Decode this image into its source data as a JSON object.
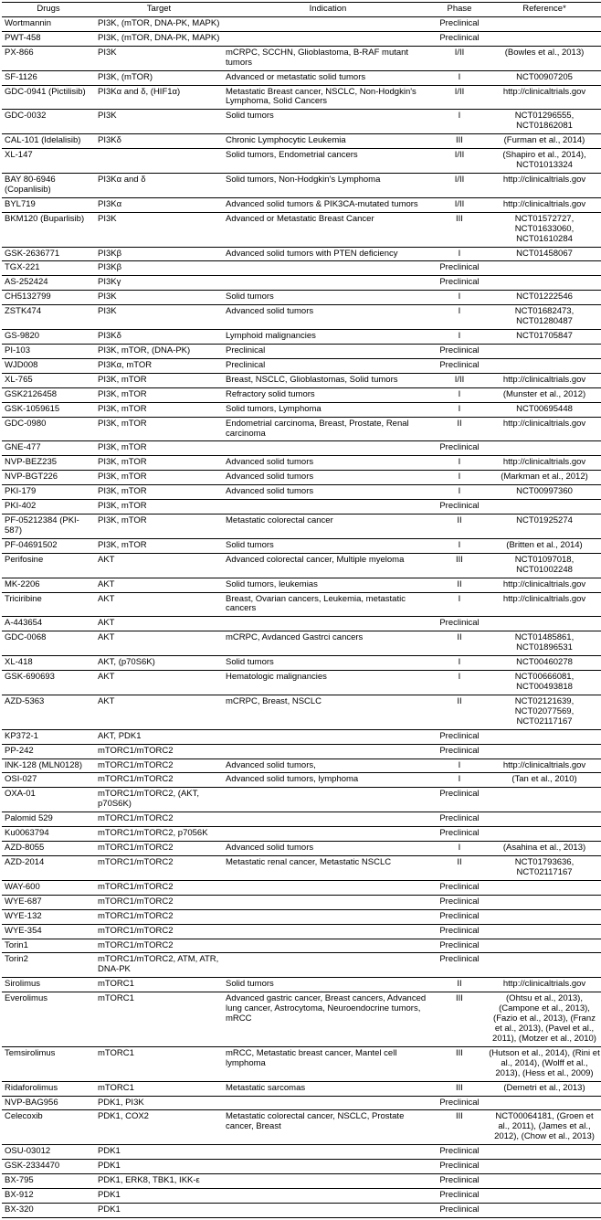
{
  "columns": [
    "Drugs",
    "Target",
    "Indication",
    "Phase",
    "Reference*"
  ],
  "rows": [
    {
      "drug": "Wortmannin",
      "target": "PI3K, (mTOR, DNA-PK, MAPK)",
      "indication": "",
      "phase": "Preclinical",
      "reference": ""
    },
    {
      "drug": "PWT-458",
      "target": "PI3K, (mTOR, DNA-PK, MAPK)",
      "indication": "",
      "phase": "Preclinical",
      "reference": ""
    },
    {
      "drug": "PX-866",
      "target": "PI3K",
      "indication": "mCRPC, SCCHN, Glioblastoma, B-RAF mutant tumors",
      "phase": "I/II",
      "reference": "(Bowles et al., 2013)"
    },
    {
      "drug": "SF-1126",
      "target": "PI3K, (mTOR)",
      "indication": "Advanced or metastatic solid tumors",
      "phase": "I",
      "reference": "NCT00907205"
    },
    {
      "drug": "GDC-0941 (Pictilisib)",
      "target": "PI3Kα and δ, (HIF1α)",
      "indication": "Metastatic Breast cancer, NSCLC, Non-Hodgkin's Lymphoma, Solid Cancers",
      "phase": "I/II",
      "reference": "http://clinicaltrials.gov"
    },
    {
      "drug": "GDC-0032",
      "target": "PI3K",
      "indication": "Solid tumors",
      "phase": "I",
      "reference": "NCT01296555, NCT01862081"
    },
    {
      "drug": "CAL-101 (Idelalisib)",
      "target": "PI3Kδ",
      "indication": "Chronic Lymphocytic Leukemia",
      "phase": "III",
      "reference": "(Furman et al., 2014)"
    },
    {
      "drug": "XL-147",
      "target": "",
      "indication": "Solid tumors, Endometrial cancers",
      "phase": "I/II",
      "reference": "(Shapiro et al., 2014), NCT01013324"
    },
    {
      "drug": "BAY 80-6946 (Copanlisib)",
      "target": "PI3Kα and δ",
      "indication": "Solid tumors, Non-Hodgkin's Lymphoma",
      "phase": "I/II",
      "reference": "http://clinicaltrials.gov"
    },
    {
      "drug": "BYL719",
      "target": "PI3Kα",
      "indication": "Advanced solid tumors & PIK3CA-mutated tumors",
      "phase": "I/II",
      "reference": "http://clinicaltrials.gov"
    },
    {
      "drug": "BKM120 (Buparlisib)",
      "target": "PI3K",
      "indication": "Advanced or Metastatic Breast Cancer",
      "phase": "III",
      "reference": "NCT01572727, NCT01633060, NCT01610284"
    },
    {
      "drug": "GSK-2636771",
      "target": "PI3Kβ",
      "indication": "Advanced solid tumors with PTEN deficiency",
      "phase": "I",
      "reference": "NCT01458067"
    },
    {
      "drug": "TGX-221",
      "target": "PI3Kβ",
      "indication": "",
      "phase": "Preclinical",
      "reference": ""
    },
    {
      "drug": "AS-252424",
      "target": "PI3Kγ",
      "indication": "",
      "phase": "Preclinical",
      "reference": ""
    },
    {
      "drug": "CH5132799",
      "target": "PI3K",
      "indication": "Solid tumors",
      "phase": "I",
      "reference": "NCT01222546"
    },
    {
      "drug": "ZSTK474",
      "target": "PI3K",
      "indication": "Advanced solid tumors",
      "phase": "I",
      "reference": "NCT01682473, NCT01280487"
    },
    {
      "drug": "GS-9820",
      "target": "PI3Kδ",
      "indication": "Lymphoid malignancies",
      "phase": "I",
      "reference": "NCT01705847"
    },
    {
      "drug": "PI-103",
      "target": "PI3K, mTOR, (DNA-PK)",
      "indication": "Preclinical",
      "phase": "Preclinical",
      "reference": ""
    },
    {
      "drug": "WJD008",
      "target": "PI3Kα, mTOR",
      "indication": "Preclinical",
      "phase": "Preclinical",
      "reference": ""
    },
    {
      "drug": "XL-765",
      "target": "PI3K, mTOR",
      "indication": "Breast, NSCLC, Glioblastomas, Solid tumors",
      "phase": "I/II",
      "reference": "http://clinicaltrials.gov"
    },
    {
      "drug": "GSK2126458",
      "target": "PI3K, mTOR",
      "indication": "Refractory solid tumors",
      "phase": "I",
      "reference": "(Munster et al., 2012)"
    },
    {
      "drug": "GSK-1059615",
      "target": "PI3K, mTOR",
      "indication": "Solid tumors, Lymphoma",
      "phase": "I",
      "reference": "NCT00695448"
    },
    {
      "drug": "GDC-0980",
      "target": "PI3K, mTOR",
      "indication": "Endometrial carcinoma, Breast, Prostate, Renal carcinoma",
      "phase": "II",
      "reference": "http://clinicaltrials.gov"
    },
    {
      "drug": "GNE-477",
      "target": "PI3K, mTOR",
      "indication": "",
      "phase": "Preclinical",
      "reference": ""
    },
    {
      "drug": "NVP-BEZ235",
      "target": "PI3K, mTOR",
      "indication": "Advanced solid tumors",
      "phase": "I",
      "reference": "http://clinicaltrials.gov"
    },
    {
      "drug": "NVP-BGT226",
      "target": "PI3K, mTOR",
      "indication": "Advanced solid tumors",
      "phase": "I",
      "reference": "(Markman et al., 2012)"
    },
    {
      "drug": "PKI-179",
      "target": "PI3K, mTOR",
      "indication": "Advanced solid tumors",
      "phase": "I",
      "reference": "NCT00997360"
    },
    {
      "drug": "PKI-402",
      "target": "PI3K, mTOR",
      "indication": "",
      "phase": "Preclinical",
      "reference": ""
    },
    {
      "drug": "PF-05212384 (PKI-587)",
      "target": "PI3K, mTOR",
      "indication": "Metastatic colorectal cancer",
      "phase": "II",
      "reference": "NCT01925274"
    },
    {
      "drug": "PF-04691502",
      "target": "PI3K, mTOR",
      "indication": "Solid tumors",
      "phase": "I",
      "reference": "(Britten et al., 2014)"
    },
    {
      "drug": "Perifosine",
      "target": "AKT",
      "indication": "Advanced colorectal cancer, Multiple myeloma",
      "phase": "III",
      "reference": "NCT01097018, NCT01002248"
    },
    {
      "drug": "MK-2206",
      "target": "AKT",
      "indication": "Solid tumors, leukemias",
      "phase": "II",
      "reference": "http://clinicaltrials.gov"
    },
    {
      "drug": "Triciribine",
      "target": "AKT",
      "indication": "Breast, Ovarian cancers, Leukemia, metastatic cancers",
      "phase": "I",
      "reference": "http://clinicaltrials.gov"
    },
    {
      "drug": "A-443654",
      "target": "AKT",
      "indication": "",
      "phase": "Preclinical",
      "reference": ""
    },
    {
      "drug": "GDC-0068",
      "target": "AKT",
      "indication": "mCRPC, Avdanced Gastrci cancers",
      "phase": "II",
      "reference": "NCT01485861, NCT01896531"
    },
    {
      "drug": "XL-418",
      "target": "AKT, (p70S6K)",
      "indication": "Solid tumors",
      "phase": "I",
      "reference": "NCT00460278"
    },
    {
      "drug": "GSK-690693",
      "target": "AKT",
      "indication": "Hematologic malignancies",
      "phase": "I",
      "reference": "NCT00666081, NCT00493818"
    },
    {
      "drug": "AZD-5363",
      "target": "AKT",
      "indication": "mCRPC, Breast, NSCLC",
      "phase": "II",
      "reference": "NCT02121639, NCT02077569, NCT02117167"
    },
    {
      "drug": "KP372-1",
      "target": "AKT, PDK1",
      "indication": "",
      "phase": "Preclinical",
      "reference": ""
    },
    {
      "drug": "PP-242",
      "target": "mTORC1/mTORC2",
      "indication": "",
      "phase": "Preclinical",
      "reference": ""
    },
    {
      "drug": "INK-128 (MLN0128)",
      "target": "mTORC1/mTORC2",
      "indication": "Advanced solid tumors,",
      "phase": "I",
      "reference": "http://clinicaltrials.gov"
    },
    {
      "drug": "OSI-027",
      "target": "mTORC1/mTORC2",
      "indication": "Advanced solid tumors, lymphoma",
      "phase": "I",
      "reference": "(Tan et al., 2010)"
    },
    {
      "drug": "OXA-01",
      "target": "mTORC1/mTORC2, (AKT, p70S6K)",
      "indication": "",
      "phase": "Preclinical",
      "reference": ""
    },
    {
      "drug": "Palomid 529",
      "target": "mTORC1/mTORC2",
      "indication": "",
      "phase": "Preclinical",
      "reference": ""
    },
    {
      "drug": "Ku0063794",
      "target": "mTORC1/mTORC2, p7056K",
      "indication": "",
      "phase": "Preclinical",
      "reference": ""
    },
    {
      "drug": "AZD-8055",
      "target": "mTORC1/mTORC2",
      "indication": "Advanced solid tumors",
      "phase": "I",
      "reference": "(Asahina et al., 2013)"
    },
    {
      "drug": "AZD-2014",
      "target": "mTORC1/mTORC2",
      "indication": "Metastatic renal cancer, Metastatic NSCLC",
      "phase": "II",
      "reference": "NCT01793636, NCT02117167"
    },
    {
      "drug": "WAY-600",
      "target": "mTORC1/mTORC2",
      "indication": "",
      "phase": "Preclinical",
      "reference": ""
    },
    {
      "drug": "WYE-687",
      "target": "mTORC1/mTORC2",
      "indication": "",
      "phase": "Preclinical",
      "reference": ""
    },
    {
      "drug": "WYE-132",
      "target": "mTORC1/mTORC2",
      "indication": "",
      "phase": "Preclinical",
      "reference": ""
    },
    {
      "drug": "WYE-354",
      "target": "mTORC1/mTORC2",
      "indication": "",
      "phase": "Preclinical",
      "reference": ""
    },
    {
      "drug": "Torin1",
      "target": "mTORC1/mTORC2",
      "indication": "",
      "phase": "Preclinical",
      "reference": ""
    },
    {
      "drug": "Torin2",
      "target": "mTORC1/mTORC2, ATM, ATR, DNA-PK",
      "indication": "",
      "phase": "Preclinical",
      "reference": ""
    },
    {
      "drug": "Sirolimus",
      "target": "mTORC1",
      "indication": "Solid tumors",
      "phase": "II",
      "reference": "http://clinicaltrials.gov"
    },
    {
      "drug": "Everolimus",
      "target": "mTORC1",
      "indication": "Advanced gastric cancer, Breast cancers, Advanced lung cancer, Astrocytoma, Neuroendocrine tumors, mRCC",
      "phase": "III",
      "reference": "(Ohtsu et al., 2013), (Campone et al., 2013), (Fazio et al., 2013), (Franz et al., 2013), (Pavel et al., 2011), (Motzer et al., 2010)"
    },
    {
      "drug": "Temsirolimus",
      "target": "mTORC1",
      "indication": "mRCC, Metastatic breast cancer, Mantel cell lymphoma",
      "phase": "III",
      "reference": "(Hutson et al., 2014), (Rini et al., 2014), (Wolff et al., 2013), (Hess et al., 2009)"
    },
    {
      "drug": "Ridaforolimus",
      "target": "mTORC1",
      "indication": "Metastatic sarcomas",
      "phase": "III",
      "reference": "(Demetri et al., 2013)"
    },
    {
      "drug": "NVP-BAG956",
      "target": "PDK1, PI3K",
      "indication": "",
      "phase": "Preclinical",
      "reference": ""
    },
    {
      "drug": "Celecoxib",
      "target": "PDK1, COX2",
      "indication": "Metastatic colorectal cancer, NSCLC, Prostate cancer, Breast",
      "phase": "III",
      "reference": "NCT00064181, (Groen et al., 2011), (James et al., 2012), (Chow et al., 2013)"
    },
    {
      "drug": "OSU-03012",
      "target": "PDK1",
      "indication": "",
      "phase": "Preclinical",
      "reference": ""
    },
    {
      "drug": "GSK-2334470",
      "target": "PDK1",
      "indication": "",
      "phase": "Preclinical",
      "reference": ""
    },
    {
      "drug": "BX-795",
      "target": "PDK1, ERK8, TBK1, IKK-ε",
      "indication": "",
      "phase": "Preclinical",
      "reference": ""
    },
    {
      "drug": "BX-912",
      "target": "PDK1",
      "indication": "",
      "phase": "Preclinical",
      "reference": ""
    },
    {
      "drug": "BX-320",
      "target": "PDK1",
      "indication": "",
      "phase": "Preclinical",
      "reference": ""
    }
  ]
}
